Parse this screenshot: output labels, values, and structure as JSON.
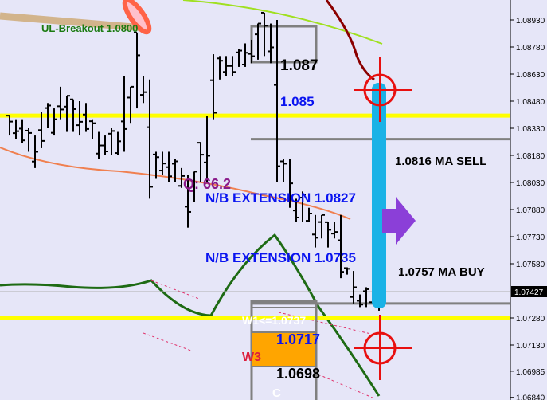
{
  "chart_data": {
    "type": "ohlc",
    "title": "",
    "xlabel": "",
    "ylabel": "",
    "ylim": [
      1.0683,
      1.0898
    ],
    "y_ticks": [
      "1.08930",
      "1.08780",
      "1.08630",
      "1.08480",
      "1.08330",
      "1.08180",
      "1.08030",
      "1.07880",
      "1.07730",
      "1.07580",
      "1.07280",
      "1.07130",
      "1.06985",
      "1.06840"
    ],
    "current_price": "1.07427",
    "bars_high_low": [
      [
        1.084,
        1.0829
      ],
      [
        1.0838,
        1.0827
      ],
      [
        1.0838,
        1.0825
      ],
      [
        1.0833,
        1.082
      ],
      [
        1.0829,
        1.0811
      ],
      [
        1.0842,
        1.0822
      ],
      [
        1.0847,
        1.0833
      ],
      [
        1.0844,
        1.0829
      ],
      [
        1.0856,
        1.0838
      ],
      [
        1.0851,
        1.0831
      ],
      [
        1.0849,
        1.0831
      ],
      [
        1.0848,
        1.0829
      ],
      [
        1.0847,
        1.0831
      ],
      [
        1.0838,
        1.0827
      ],
      [
        1.0831,
        1.0816
      ],
      [
        1.0829,
        1.0818
      ],
      [
        1.0833,
        1.0818
      ],
      [
        1.0831,
        1.0818
      ],
      [
        1.0862,
        1.082
      ],
      [
        1.0856,
        1.0836
      ],
      [
        1.0886,
        1.0844
      ],
      [
        1.0862,
        1.0847
      ],
      [
        1.086,
        1.0794
      ],
      [
        1.082,
        1.0805
      ],
      [
        1.082,
        1.0807
      ],
      [
        1.082,
        1.0803
      ],
      [
        1.0816,
        1.0803
      ],
      [
        1.0811,
        1.08
      ],
      [
        1.0807,
        1.0778
      ],
      [
        1.0809,
        1.0792
      ],
      [
        1.0825,
        1.0803
      ],
      [
        1.084,
        1.0803
      ],
      [
        1.0874,
        1.0838
      ],
      [
        1.0873,
        1.086
      ],
      [
        1.0873,
        1.0862
      ],
      [
        1.0873,
        1.0862
      ],
      [
        1.0877,
        1.0867
      ],
      [
        1.088,
        1.0867
      ],
      [
        1.0882,
        1.0869
      ],
      [
        1.0891,
        1.0871
      ],
      [
        1.0897,
        1.0873
      ],
      [
        1.0891,
        1.0869
      ],
      [
        1.0893,
        1.0803
      ],
      [
        1.0816,
        1.0803
      ],
      [
        1.0816,
        1.0789
      ],
      [
        1.0794,
        1.0781
      ],
      [
        1.0798,
        1.0781
      ],
      [
        1.0789,
        1.0781
      ],
      [
        1.0785,
        1.0767
      ],
      [
        1.0785,
        1.0772
      ],
      [
        1.0781,
        1.0767
      ],
      [
        1.0781,
        1.0772
      ],
      [
        1.0785,
        1.075
      ],
      [
        1.0756,
        1.0752
      ],
      [
        1.0754,
        1.0736
      ],
      [
        1.0741,
        1.0734
      ],
      [
        1.0745,
        1.0734
      ],
      [
        1.0743,
        1.0736
      ],
      [
        1.0743,
        1.0732
      ]
    ],
    "levels": [
      {
        "price": 1.084,
        "color": "#ffff00"
      },
      {
        "price": 1.0728,
        "color": "#ffff00"
      },
      {
        "price": 1.0827,
        "color": "#808080"
      },
      {
        "price": 1.0736,
        "color": "#808080"
      }
    ],
    "annotations": {
      "ul_breakout": "UL-Breakout 1.0800",
      "box_top": "1.087",
      "box_mid": "1.085",
      "ma_sell": "1.0816 MA SELL",
      "q": "Q: 66.2",
      "nb_ext_high": "N/B EXTENSION 1.0827",
      "nb_ext_low": "N/B EXTENSION 1.0735",
      "ma_buy": "1.0757 MA BUY",
      "w1": "W1<=1.0737",
      "w3_value": "1.0717",
      "w3": "W3",
      "w3_low": "1.0698",
      "c": "C"
    },
    "colors": {
      "background": "#e6e6f8",
      "support_resistance": "#ffff00",
      "target_bar": "#1ab2e6",
      "crosshair": "#e81010",
      "arrow": "#8b3fd8",
      "oscillator": "#1e6b14",
      "moving_average": "#f08050",
      "zone": "#ffa500"
    }
  }
}
